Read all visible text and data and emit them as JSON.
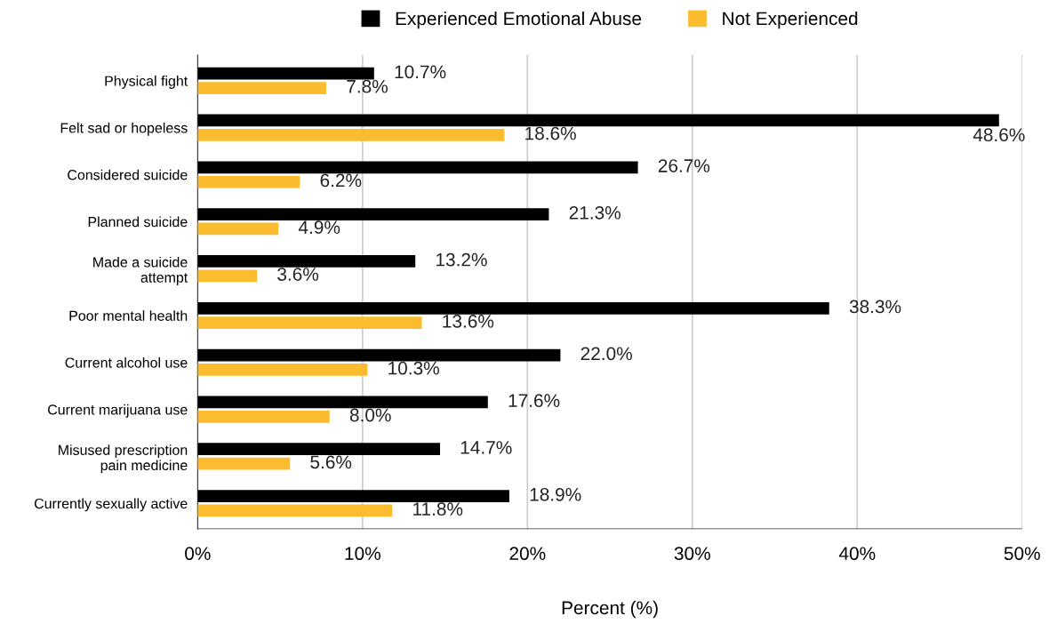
{
  "chart_data": {
    "type": "bar",
    "orientation": "horizontal",
    "xlabel": "Percent (%)",
    "categories": [
      "Physical fight",
      "Felt sad or hopeless",
      "Considered suicide",
      "Planned suicide",
      "Made a suicide\nattempt",
      "Poor mental health",
      "Current alcohol use",
      "Current marijuana use",
      "Misused prescription\npain medicine",
      "Currently sexually active"
    ],
    "series": [
      {
        "name": "Experienced Emotional Abuse",
        "color": "#000000",
        "values": [
          10.7,
          48.6,
          26.7,
          21.3,
          13.2,
          38.3,
          22.0,
          17.6,
          14.7,
          18.9
        ],
        "value_labels": [
          "10.7%",
          "48.6%",
          "26.7%",
          "21.3%",
          "13.2%",
          "38.3%",
          "22.0%",
          "17.6%",
          "14.7%",
          "18.9%"
        ]
      },
      {
        "name": "Not Experienced",
        "color": "#fbbc2f",
        "values": [
          7.8,
          18.6,
          6.2,
          4.9,
          3.6,
          13.6,
          10.3,
          8.0,
          5.6,
          11.8
        ],
        "value_labels": [
          "7.8%",
          "18.6%",
          "6.2%",
          "4.9%",
          "3.6%",
          "13.6%",
          "10.3%",
          "8.0%",
          "5.6%",
          "11.8%"
        ]
      }
    ],
    "xlim": [
      0,
      50
    ],
    "xticks": [
      {
        "value": 0,
        "label": "0%"
      },
      {
        "value": 10,
        "label": "10%"
      },
      {
        "value": 20,
        "label": "20%"
      },
      {
        "value": 30,
        "label": "30%"
      },
      {
        "value": 40,
        "label": "40%"
      },
      {
        "value": 50,
        "label": "50%"
      }
    ],
    "grid": "x",
    "legend": "top"
  }
}
